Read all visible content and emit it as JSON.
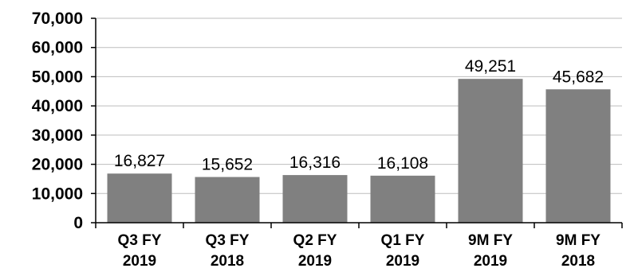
{
  "chart_data": {
    "type": "bar",
    "categories": [
      [
        "Q3 FY",
        "2019"
      ],
      [
        "Q3 FY",
        "2018"
      ],
      [
        "Q2 FY",
        "2019"
      ],
      [
        "Q1 FY",
        "2019"
      ],
      [
        "9M FY",
        "2019"
      ],
      [
        "9M FY",
        "2018"
      ]
    ],
    "values": [
      16827,
      15652,
      16316,
      16108,
      49251,
      45682
    ],
    "data_labels": [
      "16,827",
      "15,652",
      "16,316",
      "16,108",
      "49,251",
      "45,682"
    ],
    "ylim": [
      0,
      70000
    ],
    "yticks": [
      0,
      10000,
      20000,
      30000,
      40000,
      50000,
      60000,
      70000
    ],
    "ytick_labels": [
      "0",
      "10,000",
      "20,000",
      "30,000",
      "40,000",
      "50,000",
      "60,000",
      "70,000"
    ],
    "grid": true,
    "bar_color": "#808080",
    "grid_color": "#bdbdbd"
  }
}
